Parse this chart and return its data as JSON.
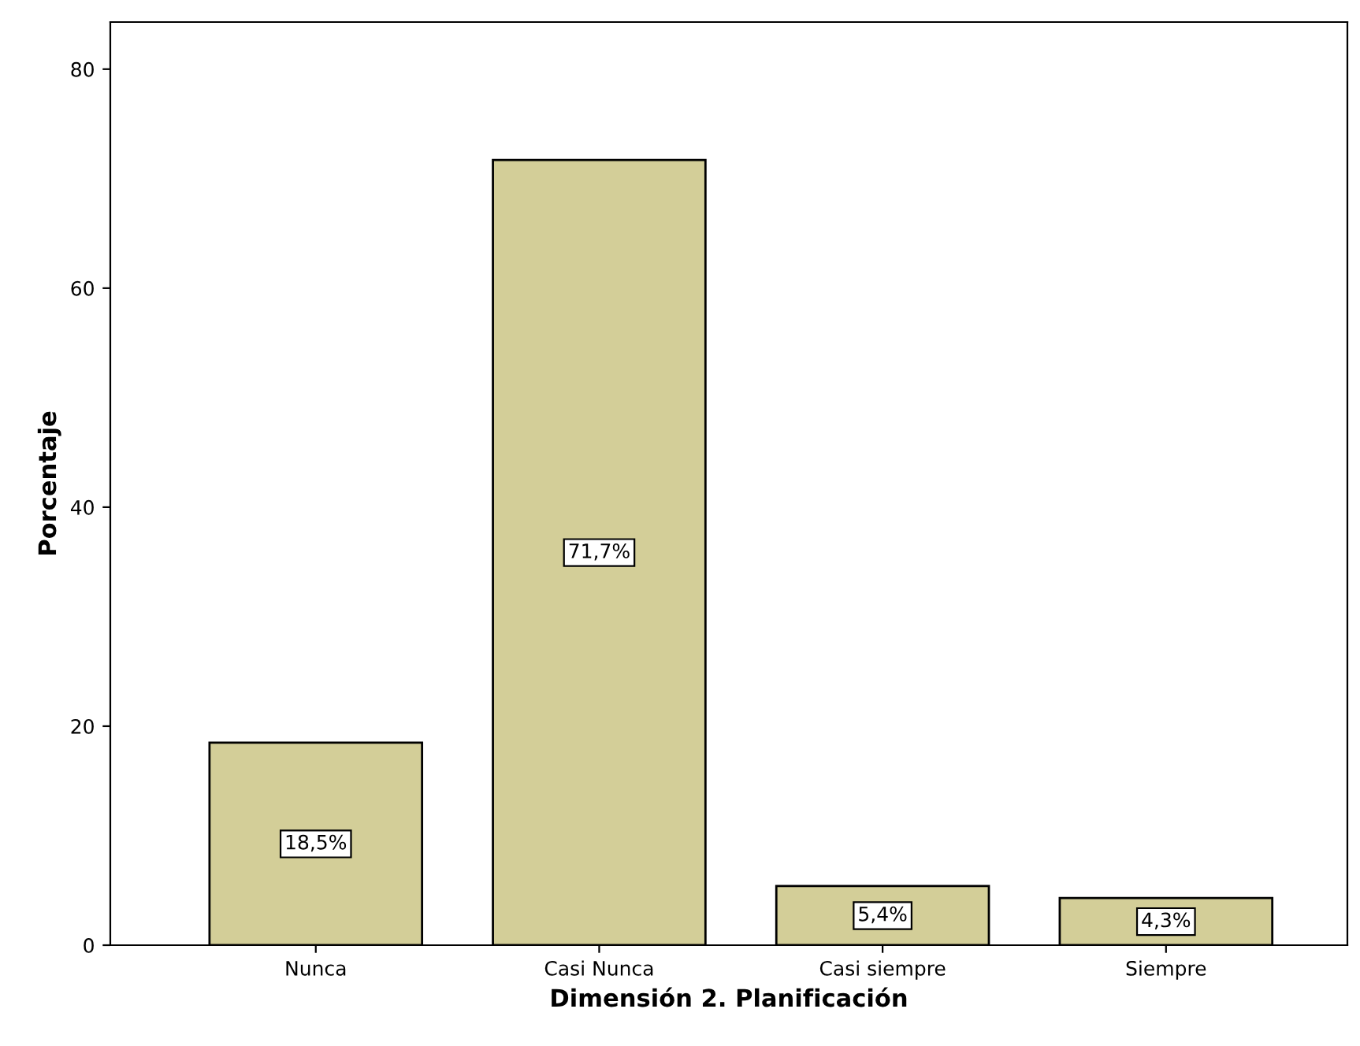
{
  "chart_data": {
    "type": "bar",
    "xlabel": "Dimensión 2. Planificación",
    "ylabel": "Porcentaje",
    "categories": [
      "Nunca",
      "Casi Nunca",
      "Casi siempre",
      "Siempre"
    ],
    "values": [
      18.5,
      71.7,
      5.4,
      4.3
    ],
    "value_labels": [
      "18,5%",
      "71,7%",
      "5,4%",
      "4,3%"
    ],
    "color": "#d3ce98",
    "ylim": [
      0,
      84.3
    ],
    "yticks": [
      0,
      20,
      40,
      60,
      80
    ],
    "grid": false,
    "legend": false
  }
}
